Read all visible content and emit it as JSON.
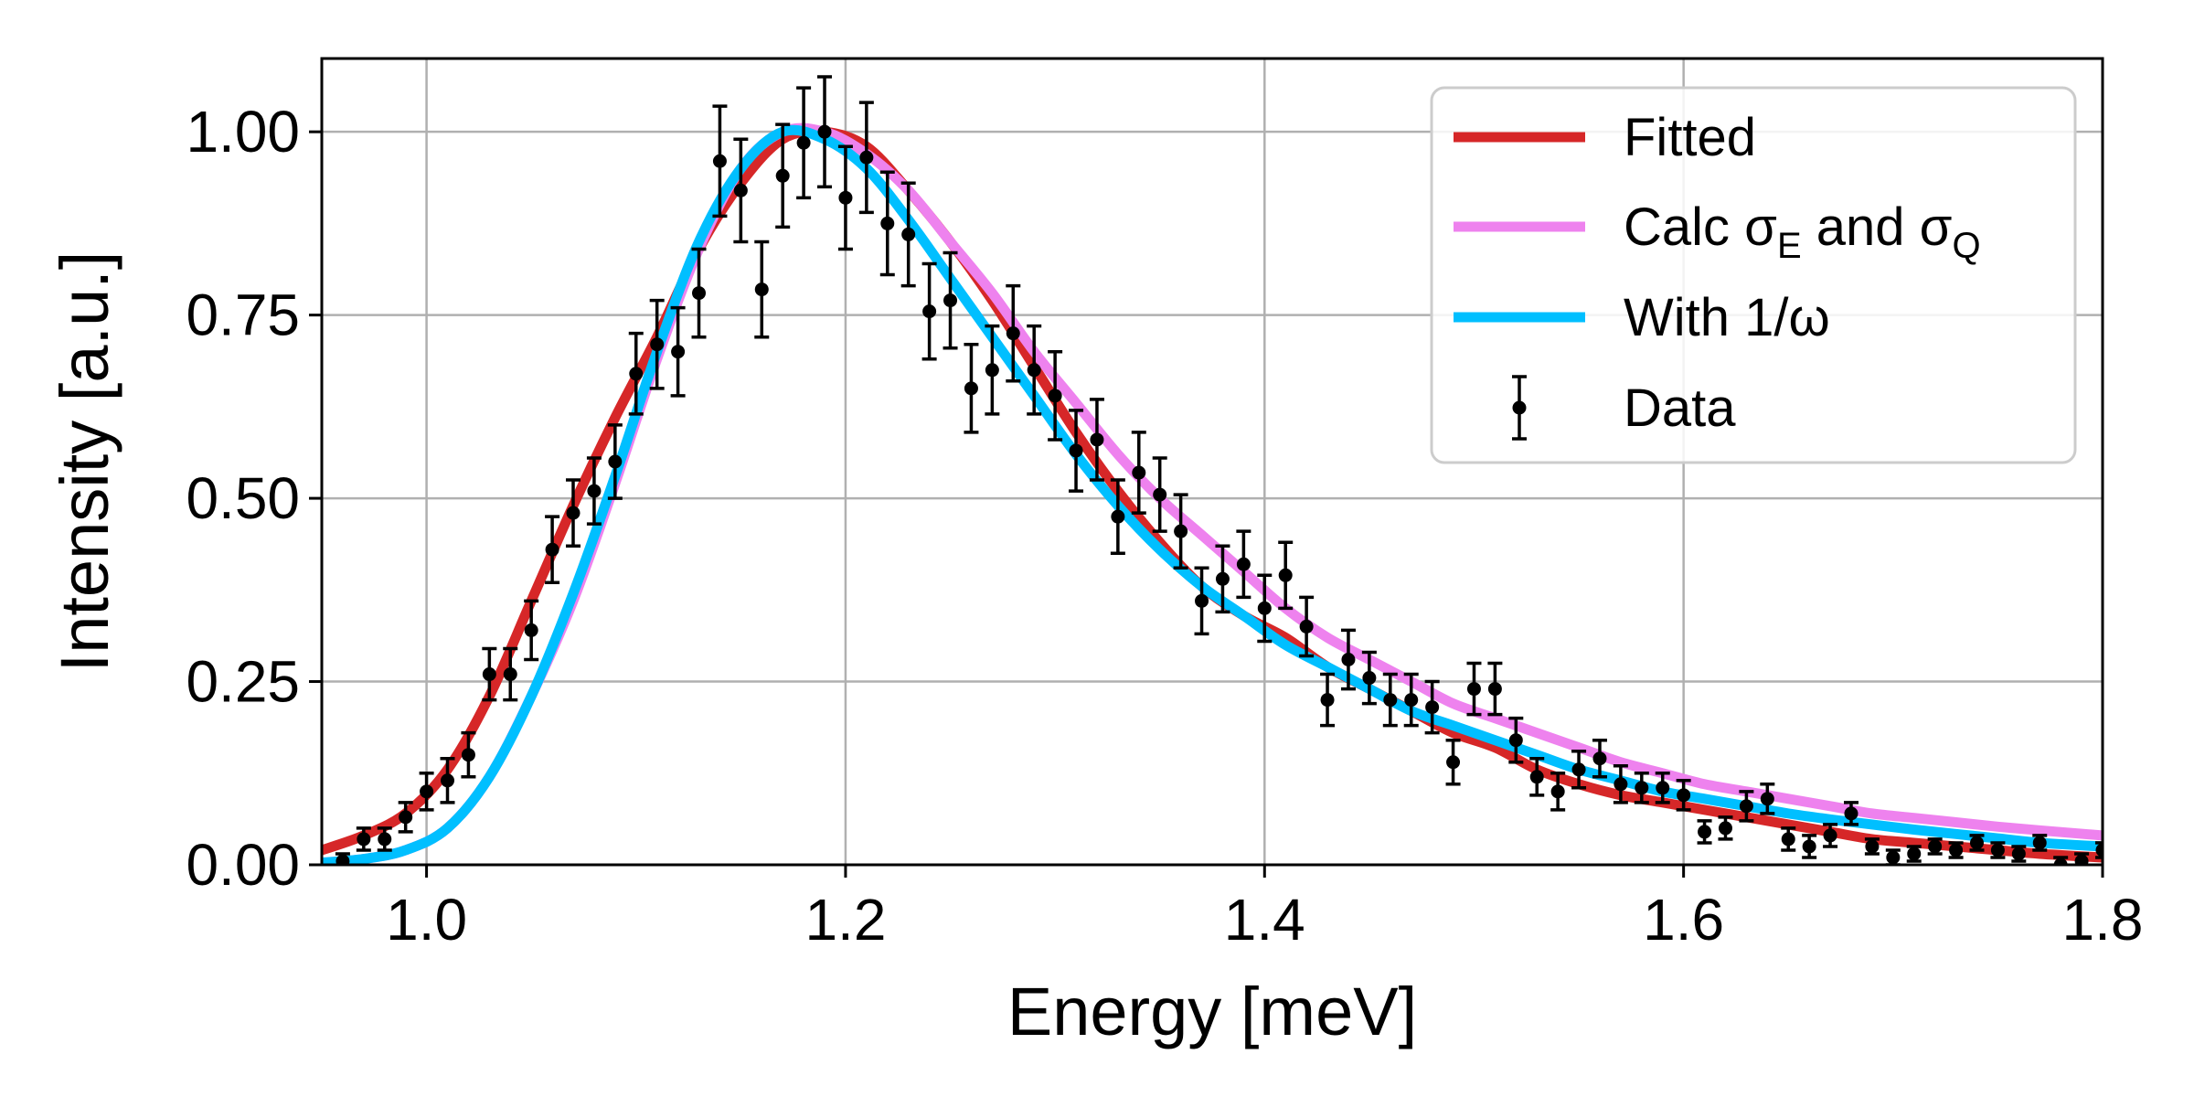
{
  "chart_data": {
    "type": "line",
    "title": "",
    "xlabel": "Energy [meV]",
    "ylabel": "Intensity [a.u.]",
    "xlim": [
      0.95,
      1.8
    ],
    "ylim": [
      0.0,
      1.1
    ],
    "grid": true,
    "legend_position": "top-right",
    "x_ticks": [
      1.0,
      1.2,
      1.4,
      1.6,
      1.8
    ],
    "x_tick_labels": [
      "1.0",
      "1.2",
      "1.4",
      "1.6",
      "1.8"
    ],
    "y_ticks": [
      0.0,
      0.25,
      0.5,
      0.75,
      1.0
    ],
    "y_tick_labels": [
      "0.00",
      "0.25",
      "0.50",
      "0.75",
      "1.00"
    ],
    "series": [
      {
        "name": "Fitted",
        "legend_label": "Fitted",
        "kind": "line",
        "color": "#d62728",
        "x": [
          0.95,
          0.97,
          0.99,
          1.01,
          1.03,
          1.05,
          1.07,
          1.09,
          1.11,
          1.13,
          1.15,
          1.17,
          1.19,
          1.21,
          1.23,
          1.25,
          1.27,
          1.29,
          1.31,
          1.33,
          1.35,
          1.37,
          1.39,
          1.41,
          1.43,
          1.45,
          1.47,
          1.49,
          1.51,
          1.53,
          1.55,
          1.57,
          1.59,
          1.61,
          1.63,
          1.65,
          1.67,
          1.69,
          1.71,
          1.73,
          1.75,
          1.77,
          1.8
        ],
        "y": [
          0.02,
          0.04,
          0.07,
          0.13,
          0.23,
          0.36,
          0.49,
          0.61,
          0.72,
          0.84,
          0.93,
          0.99,
          1.0,
          0.98,
          0.92,
          0.85,
          0.77,
          0.68,
          0.59,
          0.51,
          0.44,
          0.38,
          0.34,
          0.31,
          0.27,
          0.24,
          0.21,
          0.18,
          0.16,
          0.13,
          0.11,
          0.095,
          0.085,
          0.075,
          0.065,
          0.055,
          0.045,
          0.035,
          0.03,
          0.025,
          0.02,
          0.015,
          0.01
        ]
      },
      {
        "name": "Calc sigma_E and sigma_Q",
        "legend_label": "Calc σ",
        "legend_sub_1": "E",
        "legend_mid": " and σ",
        "legend_sub_2": "Q",
        "kind": "line",
        "color": "#ee82ee",
        "x": [
          0.95,
          0.97,
          0.99,
          1.01,
          1.03,
          1.05,
          1.07,
          1.09,
          1.11,
          1.13,
          1.15,
          1.17,
          1.19,
          1.21,
          1.23,
          1.25,
          1.27,
          1.29,
          1.31,
          1.33,
          1.35,
          1.37,
          1.39,
          1.41,
          1.43,
          1.45,
          1.47,
          1.49,
          1.51,
          1.53,
          1.55,
          1.57,
          1.59,
          1.61,
          1.63,
          1.65,
          1.67,
          1.69,
          1.71,
          1.73,
          1.75,
          1.77,
          1.8
        ],
        "y": [
          0.003,
          0.008,
          0.02,
          0.05,
          0.12,
          0.23,
          0.36,
          0.52,
          0.69,
          0.84,
          0.95,
          1.0,
          1.0,
          0.97,
          0.92,
          0.85,
          0.78,
          0.7,
          0.63,
          0.56,
          0.5,
          0.45,
          0.4,
          0.35,
          0.31,
          0.28,
          0.25,
          0.22,
          0.2,
          0.18,
          0.16,
          0.14,
          0.125,
          0.11,
          0.1,
          0.09,
          0.08,
          0.07,
          0.064,
          0.058,
          0.052,
          0.047,
          0.04
        ]
      },
      {
        "name": "With 1/omega",
        "legend_label": "With 1/ω",
        "kind": "line",
        "color": "#00bfff",
        "x": [
          0.95,
          0.97,
          0.99,
          1.01,
          1.03,
          1.05,
          1.07,
          1.09,
          1.11,
          1.13,
          1.15,
          1.17,
          1.19,
          1.21,
          1.23,
          1.25,
          1.27,
          1.29,
          1.31,
          1.33,
          1.35,
          1.37,
          1.39,
          1.41,
          1.43,
          1.45,
          1.47,
          1.49,
          1.51,
          1.53,
          1.55,
          1.57,
          1.59,
          1.61,
          1.63,
          1.65,
          1.67,
          1.69,
          1.71,
          1.73,
          1.75,
          1.77,
          1.8
        ],
        "y": [
          0.003,
          0.008,
          0.02,
          0.05,
          0.12,
          0.23,
          0.37,
          0.53,
          0.7,
          0.85,
          0.95,
          1.0,
          0.99,
          0.95,
          0.88,
          0.8,
          0.72,
          0.64,
          0.56,
          0.49,
          0.43,
          0.38,
          0.34,
          0.3,
          0.27,
          0.24,
          0.21,
          0.19,
          0.17,
          0.15,
          0.13,
          0.115,
          0.1,
          0.09,
          0.08,
          0.07,
          0.062,
          0.055,
          0.048,
          0.042,
          0.036,
          0.03,
          0.025
        ]
      }
    ],
    "scatter": {
      "name": "Data",
      "legend_label": "Data",
      "kind": "errorbar",
      "color": "#000000",
      "x": [
        0.96,
        0.97,
        0.98,
        0.99,
        1.0,
        1.01,
        1.02,
        1.03,
        1.04,
        1.05,
        1.06,
        1.07,
        1.08,
        1.09,
        1.1,
        1.11,
        1.12,
        1.13,
        1.14,
        1.15,
        1.16,
        1.17,
        1.18,
        1.19,
        1.2,
        1.21,
        1.22,
        1.23,
        1.24,
        1.25,
        1.26,
        1.27,
        1.28,
        1.29,
        1.3,
        1.31,
        1.32,
        1.33,
        1.34,
        1.35,
        1.36,
        1.37,
        1.38,
        1.39,
        1.4,
        1.41,
        1.42,
        1.43,
        1.44,
        1.45,
        1.46,
        1.47,
        1.48,
        1.49,
        1.5,
        1.51,
        1.52,
        1.53,
        1.54,
        1.55,
        1.56,
        1.57,
        1.58,
        1.59,
        1.6,
        1.61,
        1.62,
        1.63,
        1.64,
        1.65,
        1.66,
        1.67,
        1.68,
        1.69,
        1.7,
        1.71,
        1.72,
        1.73,
        1.74,
        1.75,
        1.76,
        1.77,
        1.78,
        1.79,
        1.8
      ],
      "y": [
        0.005,
        0.035,
        0.035,
        0.065,
        0.1,
        0.115,
        0.15,
        0.26,
        0.26,
        0.32,
        0.43,
        0.48,
        0.51,
        0.55,
        0.67,
        0.71,
        0.7,
        0.78,
        0.96,
        0.92,
        0.785,
        0.94,
        0.985,
        1.0,
        0.91,
        0.965,
        0.875,
        0.86,
        0.755,
        0.77,
        0.65,
        0.675,
        0.725,
        0.675,
        0.64,
        0.565,
        0.58,
        0.475,
        0.535,
        0.505,
        0.455,
        0.36,
        0.39,
        0.41,
        0.35,
        0.395,
        0.325,
        0.225,
        0.28,
        0.255,
        0.225,
        0.225,
        0.215,
        0.14,
        0.24,
        0.24,
        0.17,
        0.12,
        0.1,
        0.13,
        0.145,
        0.11,
        0.105,
        0.105,
        0.095,
        0.045,
        0.05,
        0.08,
        0.09,
        0.035,
        0.025,
        0.04,
        0.07,
        0.025,
        0.01,
        0.015,
        0.025,
        0.02,
        0.03,
        0.02,
        0.015,
        0.03,
        0.0,
        0.005,
        0.02
      ],
      "err": [
        0.01,
        0.015,
        0.015,
        0.02,
        0.025,
        0.03,
        0.03,
        0.035,
        0.035,
        0.04,
        0.045,
        0.045,
        0.045,
        0.05,
        0.055,
        0.06,
        0.06,
        0.06,
        0.075,
        0.07,
        0.065,
        0.07,
        0.075,
        0.075,
        0.07,
        0.075,
        0.07,
        0.07,
        0.065,
        0.065,
        0.06,
        0.06,
        0.065,
        0.06,
        0.06,
        0.055,
        0.055,
        0.05,
        0.055,
        0.05,
        0.05,
        0.045,
        0.045,
        0.045,
        0.045,
        0.045,
        0.04,
        0.035,
        0.04,
        0.035,
        0.035,
        0.035,
        0.035,
        0.03,
        0.035,
        0.035,
        0.03,
        0.025,
        0.025,
        0.025,
        0.025,
        0.025,
        0.02,
        0.02,
        0.02,
        0.015,
        0.015,
        0.02,
        0.02,
        0.015,
        0.015,
        0.015,
        0.015,
        0.01,
        0.01,
        0.01,
        0.01,
        0.01,
        0.01,
        0.01,
        0.01,
        0.01,
        0.01,
        0.01,
        0.01
      ]
    }
  }
}
